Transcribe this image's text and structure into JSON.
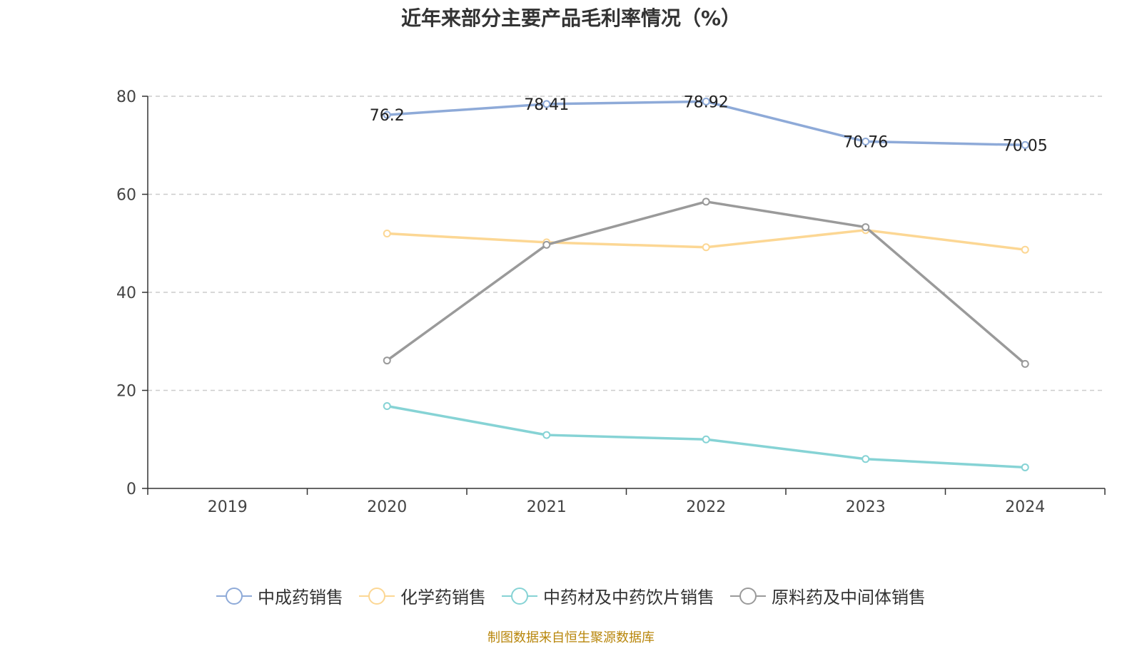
{
  "chart_data": {
    "type": "line",
    "title": "近年来部分主要产品毛利率情况（%）",
    "categories": [
      "2019",
      "2020",
      "2021",
      "2022",
      "2023",
      "2024"
    ],
    "ylim": [
      0,
      80
    ],
    "yticks": [
      0,
      20,
      40,
      60,
      80
    ],
    "grid": true,
    "legend_position": "bottom",
    "series": [
      {
        "name": "中成药销售",
        "color": "#8eaad8",
        "values": [
          null,
          76.2,
          78.41,
          78.92,
          70.76,
          70.05
        ],
        "show_labels": true
      },
      {
        "name": "化学药销售",
        "color": "#fcd794",
        "values": [
          null,
          52.0,
          50.2,
          49.2,
          52.7,
          48.7
        ],
        "show_labels": false
      },
      {
        "name": "中药材及中药饮片销售",
        "color": "#86d3d5",
        "values": [
          null,
          16.8,
          10.9,
          10.0,
          6.0,
          4.3
        ],
        "show_labels": false
      },
      {
        "name": "原料药及中间体销售",
        "color": "#9a9a9a",
        "values": [
          null,
          26.1,
          49.7,
          58.5,
          53.3,
          25.4
        ],
        "show_labels": false
      }
    ]
  },
  "source": "制图数据来自恒生聚源数据库"
}
